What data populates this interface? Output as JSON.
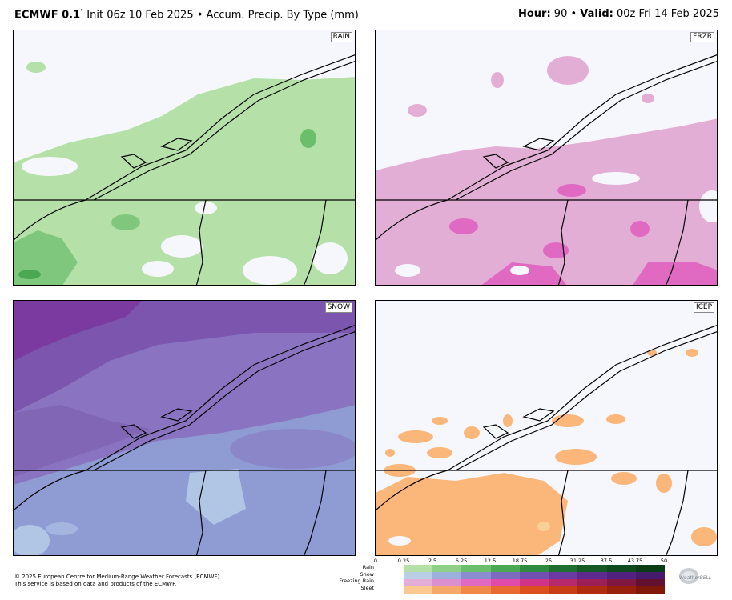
{
  "header": {
    "model": "ECMWF 0.1",
    "deg": "°",
    "init": " Init 06z 10 Feb 2025 • Accum. Precip. By Type (mm)",
    "hour_label": "Hour:",
    "hour_value": " 90 • ",
    "valid_label": "Valid:",
    "valid_value": " 00z Fri 14 Feb 2025"
  },
  "panels": {
    "rain": "RAIN",
    "frzr": "FRZR",
    "snow": "SNOW",
    "icep": "ICEP"
  },
  "legend": {
    "ticks": [
      "0",
      "0.25",
      "2.5",
      "6.25",
      "12.5",
      "18.75",
      "25",
      "31.25",
      "37.5",
      "43.75",
      "50"
    ],
    "rows": [
      "Rain",
      "Snow",
      "Freezing Rain",
      "Sleet"
    ],
    "colors": {
      "rain": [
        "#b5e0a8",
        "#8fd088",
        "#6bbf6b",
        "#4aa852",
        "#2e8b3f",
        "#1f7030",
        "#155a24",
        "#0e4a1c",
        "#0a3d16"
      ],
      "snow": [
        "#b8cfe6",
        "#9db0dc",
        "#8a8ed0",
        "#7c6bbf",
        "#7050b0",
        "#6a3aa2",
        "#5e2a90",
        "#52207e",
        "#461a6c"
      ],
      "frzr": [
        "#e3aed6",
        "#dc8fce",
        "#e06ac2",
        "#e04aa8",
        "#d03388",
        "#b8286c",
        "#9c2056",
        "#801842",
        "#641030"
      ],
      "sleet": [
        "#fbc890",
        "#f6a868",
        "#f08848",
        "#e86a30",
        "#dc5020",
        "#c83c16",
        "#b02c10",
        "#98200c",
        "#801808"
      ]
    }
  },
  "footer": {
    "line1": "© 2025 European Centre for Medium-Range Weather Forecasts (ECMWF).",
    "line2": "This service is based on data and products of the ECMWF."
  },
  "logo": {
    "text": "WeatherBELL"
  }
}
